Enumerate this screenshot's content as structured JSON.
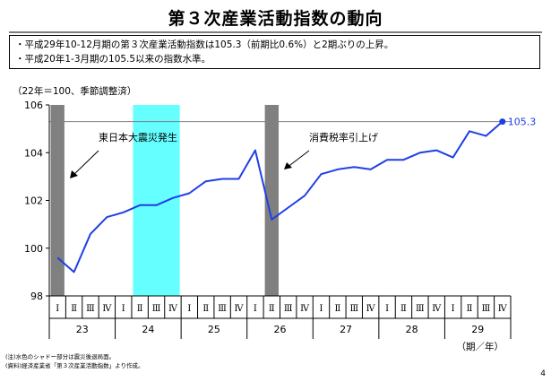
{
  "page": {
    "title": "第３次産業活動指数の動向",
    "summary": [
      "・平成29年10-12月期の第３次産業活動指数は105.3（前期比0.6%）と2期ぶりの上昇。",
      "・平成20年1-3月期の105.5以来の指数水準。"
    ],
    "unit_label": "（22年＝100、季節調整済）",
    "notes": [
      "(注)水色のシャドー部分は震災後退局面。",
      "(資料)経済産業省「第３次産業活動指数」より作成。"
    ],
    "page_number": "4"
  },
  "chart_data": {
    "type": "line",
    "y_ticks": [
      "106",
      "104",
      "102",
      "100",
      "98"
    ],
    "ylim": [
      98,
      106
    ],
    "quarter_labels": [
      "Ⅰ",
      "Ⅱ",
      "Ⅲ",
      "Ⅳ"
    ],
    "years": [
      "23",
      "24",
      "25",
      "26",
      "27",
      "28",
      "29"
    ],
    "x_axis_unit": "（期／年）",
    "series": [
      {
        "values": [
          99.6,
          99.0,
          100.6,
          101.3,
          101.5,
          101.8,
          101.8,
          102.1,
          102.3,
          102.8,
          102.9,
          102.9,
          104.1,
          101.2,
          101.7,
          102.2,
          103.1,
          103.3,
          103.4,
          103.3,
          103.7,
          103.7,
          104.0,
          104.1,
          103.8,
          104.9,
          104.7,
          105.3
        ],
        "color": "#1f3fe6"
      }
    ],
    "last_value_label": "105.3",
    "reference_line": 105.3,
    "shaded_periods": [
      {
        "start": 0,
        "end": 0,
        "color": "#808080"
      },
      {
        "start": 5,
        "end": 7,
        "color": "#66ffff"
      },
      {
        "start": 13,
        "end": 13,
        "color": "#808080"
      }
    ],
    "annotations": [
      {
        "text": "東日本大震災発生"
      },
      {
        "text": "消費税率引上げ"
      }
    ]
  }
}
